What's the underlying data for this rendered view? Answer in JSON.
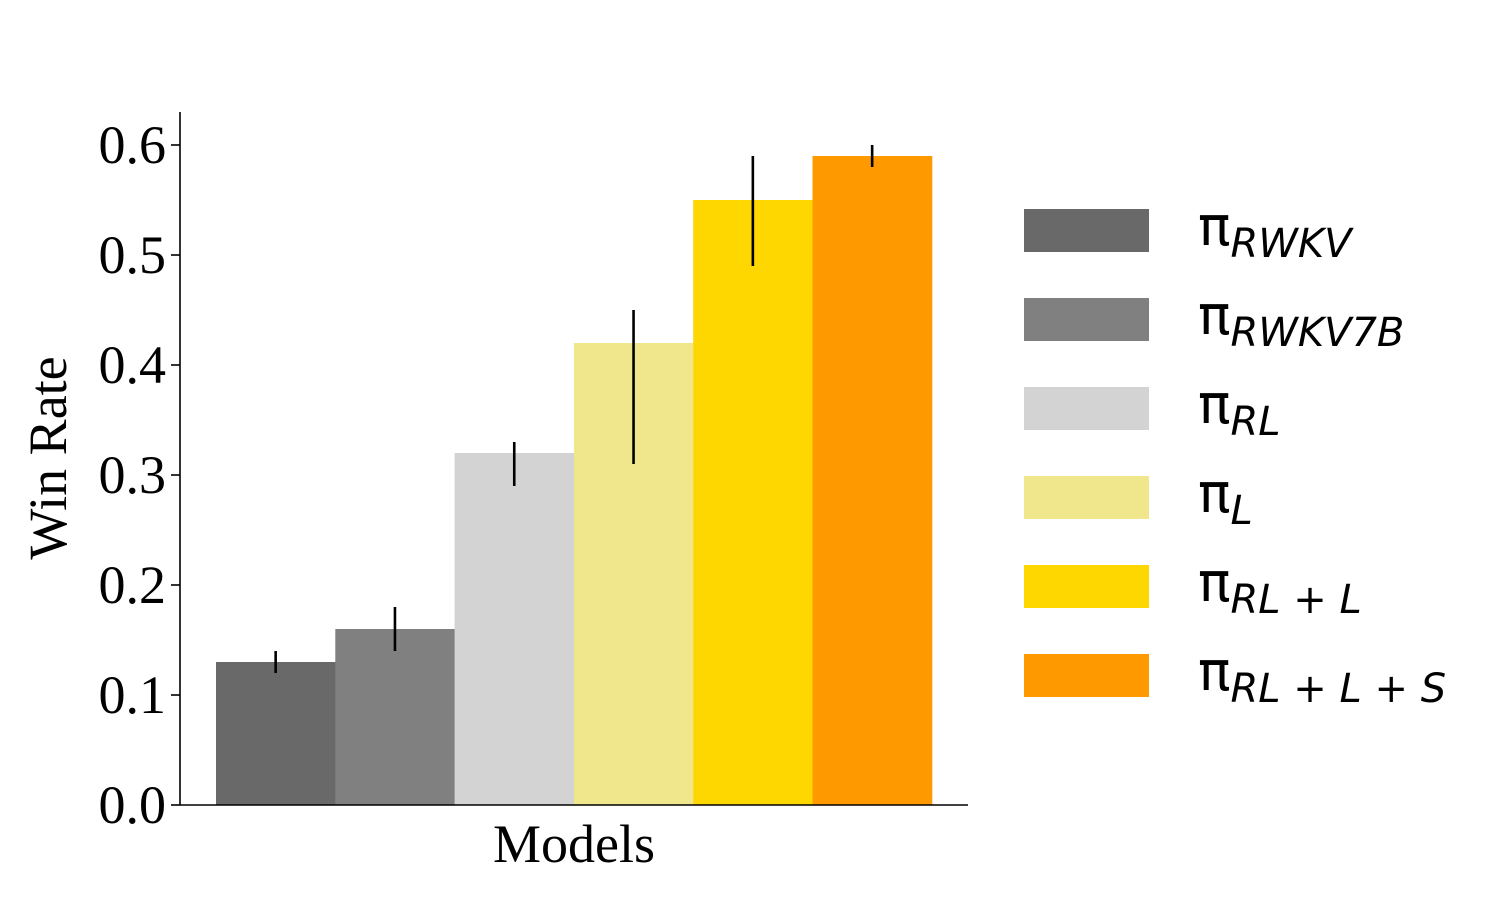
{
  "chart_data": {
    "type": "bar",
    "xlabel": "Models",
    "ylabel": "Win Rate",
    "ylim": [
      0,
      0.625
    ],
    "yticks": [
      "0.0",
      "0.1",
      "0.2",
      "0.3",
      "0.4",
      "0.5",
      "0.6"
    ],
    "grid": false,
    "legend_position": "right",
    "series": [
      {
        "name_symbol": "π",
        "name_sub": "RWKV",
        "value": 0.13,
        "err_low": 0.12,
        "err_high": 0.14,
        "color": "#696969"
      },
      {
        "name_symbol": "π",
        "name_sub": "RWKV7B",
        "value": 0.16,
        "err_low": 0.14,
        "err_high": 0.18,
        "color": "#808080"
      },
      {
        "name_symbol": "π",
        "name_sub": "RL",
        "value": 0.32,
        "err_low": 0.29,
        "err_high": 0.33,
        "color": "#d3d3d3"
      },
      {
        "name_symbol": "π",
        "name_sub": "L",
        "value": 0.42,
        "err_low": 0.31,
        "err_high": 0.45,
        "color": "#f0e68c"
      },
      {
        "name_symbol": "π",
        "name_sub": "RL + L",
        "value": 0.55,
        "err_low": 0.49,
        "err_high": 0.59,
        "color": "#ffd700"
      },
      {
        "name_symbol": "π",
        "name_sub": "RL + L + S",
        "value": 0.59,
        "err_low": 0.58,
        "err_high": 0.6,
        "color": "#ff9900"
      }
    ]
  }
}
